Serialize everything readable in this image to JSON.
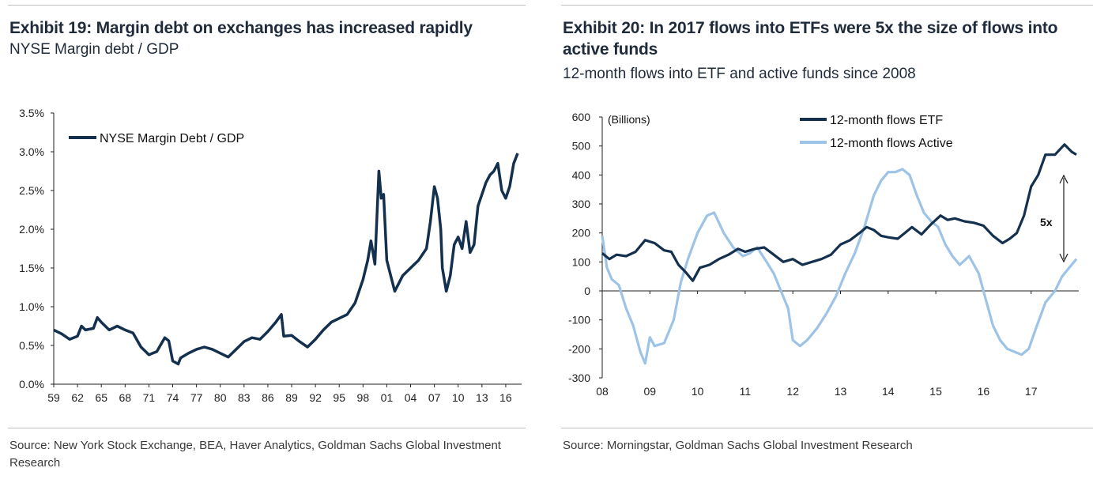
{
  "exhibits": [
    {
      "title": "Exhibit 19: Margin debt on exchanges has increased rapidly",
      "subtitle": "NYSE Margin debt / GDP",
      "source": "Source: New York Stock Exchange, BEA, Haver Analytics, Goldman Sachs Global Investment Research"
    },
    {
      "title_line1": "Exhibit 20: In 2017 flows into ETFs were 5x the size of flows into",
      "title_line2": "active funds",
      "subtitle": "12-month flows into ETF and active funds since 2008",
      "source": "Source: Morningstar, Goldman Sachs Global Investment Research"
    }
  ],
  "colors": {
    "dark_navy": "#14304f",
    "light_blue": "#9dc3e6",
    "axis": "#222222"
  },
  "chart_data": [
    {
      "type": "line",
      "title": "NYSE Margin debt / GDP",
      "xlabel": "",
      "ylabel": "",
      "x_ticks": [
        "59",
        "62",
        "65",
        "68",
        "71",
        "74",
        "77",
        "80",
        "83",
        "86",
        "89",
        "92",
        "95",
        "98",
        "01",
        "04",
        "07",
        "10",
        "13",
        "16"
      ],
      "y_ticks": [
        "0.0%",
        "0.5%",
        "1.0%",
        "1.5%",
        "2.0%",
        "2.5%",
        "3.0%",
        "3.5%"
      ],
      "xlim": [
        1959,
        2018
      ],
      "ylim": [
        0,
        3.5
      ],
      "series": [
        {
          "name": "NYSE Margin Debt / GDP",
          "color": "#14304f",
          "x": [
            1959,
            1960,
            1961,
            1962,
            1962.5,
            1963,
            1964,
            1964.5,
            1965,
            1966,
            1967,
            1968,
            1969,
            1970,
            1971,
            1972,
            1973,
            1973.5,
            1974,
            1974.7,
            1975,
            1976,
            1977,
            1978,
            1979,
            1980,
            1981,
            1982,
            1983,
            1984,
            1985,
            1986,
            1987,
            1987.7,
            1988,
            1989,
            1990,
            1991,
            1992,
            1993,
            1994,
            1995,
            1996,
            1997,
            1998,
            1998.6,
            1999,
            1999.5,
            2000,
            2000.3,
            2000.6,
            2001,
            2001.5,
            2002,
            2002.5,
            2003,
            2004,
            2005,
            2006,
            2006.5,
            2007,
            2007.4,
            2007.8,
            2008,
            2008.5,
            2009,
            2009.5,
            2010,
            2010.5,
            2011,
            2011.5,
            2012,
            2012.5,
            2013,
            2013.5,
            2014,
            2014.5,
            2015,
            2015.5,
            2016,
            2016.5,
            2017,
            2017.5
          ],
          "values": [
            0.7,
            0.65,
            0.58,
            0.62,
            0.75,
            0.7,
            0.72,
            0.86,
            0.8,
            0.7,
            0.75,
            0.7,
            0.66,
            0.48,
            0.38,
            0.42,
            0.6,
            0.56,
            0.3,
            0.26,
            0.34,
            0.4,
            0.45,
            0.48,
            0.45,
            0.4,
            0.35,
            0.45,
            0.55,
            0.6,
            0.58,
            0.68,
            0.8,
            0.9,
            0.62,
            0.63,
            0.55,
            0.48,
            0.58,
            0.7,
            0.8,
            0.85,
            0.9,
            1.05,
            1.35,
            1.6,
            1.85,
            1.55,
            2.75,
            2.4,
            2.45,
            1.6,
            1.4,
            1.2,
            1.3,
            1.4,
            1.5,
            1.6,
            1.75,
            2.1,
            2.55,
            2.4,
            2.0,
            1.5,
            1.2,
            1.4,
            1.8,
            1.9,
            1.75,
            2.1,
            1.7,
            1.8,
            2.3,
            2.45,
            2.6,
            2.7,
            2.75,
            2.85,
            2.5,
            2.4,
            2.55,
            2.85,
            2.98
          ]
        }
      ]
    },
    {
      "type": "line",
      "title": "12-month flows into ETF and active funds since 2008",
      "xlabel": "",
      "ylabel": "(Billions)",
      "x_ticks": [
        "08",
        "09",
        "10",
        "11",
        "12",
        "13",
        "14",
        "15",
        "16",
        "17"
      ],
      "y_ticks": [
        "600",
        "500",
        "400",
        "300",
        "200",
        "100",
        "0",
        "-100",
        "-200",
        "-300"
      ],
      "xlim": [
        2008,
        2018
      ],
      "ylim": [
        -300,
        600
      ],
      "annotation": "5x",
      "series": [
        {
          "name": "12-month flows ETF",
          "color": "#14304f",
          "x": [
            2008,
            2008.15,
            2008.3,
            2008.5,
            2008.7,
            2008.9,
            2009.1,
            2009.3,
            2009.45,
            2009.6,
            2009.75,
            2009.9,
            2010.05,
            2010.25,
            2010.45,
            2010.65,
            2010.85,
            2011.0,
            2011.2,
            2011.4,
            2011.6,
            2011.8,
            2012.0,
            2012.2,
            2012.4,
            2012.6,
            2012.8,
            2013.0,
            2013.2,
            2013.4,
            2013.55,
            2013.7,
            2013.85,
            2014.0,
            2014.2,
            2014.35,
            2014.5,
            2014.7,
            2014.9,
            2015.1,
            2015.25,
            2015.4,
            2015.6,
            2015.8,
            2016.0,
            2016.2,
            2016.4,
            2016.55,
            2016.7,
            2016.85,
            2017.0,
            2017.15,
            2017.3,
            2017.5,
            2017.7,
            2017.85,
            2017.95
          ],
          "values": [
            130,
            110,
            125,
            120,
            135,
            175,
            165,
            140,
            135,
            90,
            65,
            35,
            80,
            90,
            110,
            125,
            145,
            135,
            145,
            150,
            125,
            100,
            110,
            90,
            100,
            110,
            125,
            160,
            175,
            200,
            220,
            210,
            190,
            185,
            180,
            200,
            220,
            195,
            230,
            260,
            245,
            250,
            240,
            235,
            225,
            190,
            165,
            180,
            200,
            260,
            360,
            400,
            470,
            470,
            505,
            480,
            470
          ]
        },
        {
          "name": "12-month flows Active",
          "color": "#9dc3e6",
          "x": [
            2008,
            2008.1,
            2008.2,
            2008.35,
            2008.5,
            2008.65,
            2008.8,
            2008.9,
            2009.0,
            2009.1,
            2009.3,
            2009.5,
            2009.65,
            2009.8,
            2010.0,
            2010.2,
            2010.35,
            2010.55,
            2010.75,
            2010.95,
            2011.1,
            2011.25,
            2011.45,
            2011.6,
            2011.75,
            2011.9,
            2012.0,
            2012.15,
            2012.3,
            2012.5,
            2012.7,
            2012.9,
            2013.1,
            2013.3,
            2013.5,
            2013.7,
            2013.85,
            2014.0,
            2014.15,
            2014.3,
            2014.45,
            2014.6,
            2014.75,
            2014.9,
            2015.05,
            2015.2,
            2015.35,
            2015.5,
            2015.7,
            2015.9,
            2016.05,
            2016.2,
            2016.35,
            2016.5,
            2016.65,
            2016.8,
            2016.95,
            2017.1,
            2017.3,
            2017.5,
            2017.65,
            2017.8,
            2017.95
          ],
          "values": [
            190,
            80,
            40,
            20,
            -60,
            -120,
            -210,
            -250,
            -160,
            -190,
            -180,
            -100,
            30,
            110,
            200,
            260,
            270,
            200,
            150,
            120,
            130,
            150,
            100,
            60,
            0,
            -60,
            -170,
            -190,
            -170,
            -130,
            -80,
            -20,
            60,
            130,
            220,
            330,
            380,
            410,
            410,
            420,
            400,
            330,
            270,
            240,
            220,
            160,
            120,
            90,
            120,
            60,
            -30,
            -120,
            -170,
            -200,
            -210,
            -220,
            -200,
            -130,
            -40,
            0,
            50,
            80,
            110
          ]
        }
      ]
    }
  ],
  "legend": {
    "left": [
      "NYSE Margin Debt / GDP"
    ],
    "right": [
      "12-month flows ETF",
      "12-month flows Active"
    ]
  }
}
